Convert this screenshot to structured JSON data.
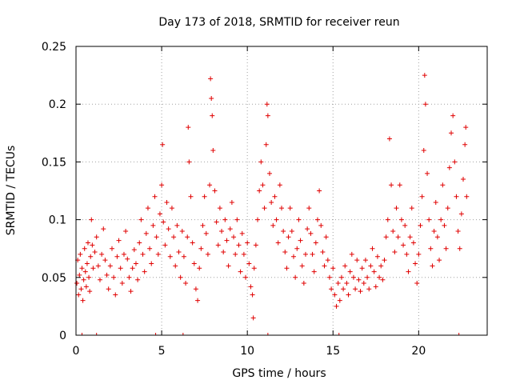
{
  "chart_data": {
    "type": "scatter",
    "title": "Day 173 of 2018, SRMTID for receiver reun",
    "xlabel": "GPS time / hours",
    "ylabel": "SRMTID / TECUs",
    "xlim": [
      0,
      24
    ],
    "ylim": [
      0,
      0.25
    ],
    "xticks": [
      0,
      5,
      10,
      15,
      20
    ],
    "xtick_labels": [
      "0",
      "5",
      "10",
      "15",
      "20"
    ],
    "yticks": [
      0,
      0.05,
      0.1,
      0.15,
      0.2,
      0.25
    ],
    "ytick_labels": [
      "0",
      "0.05",
      "0.1",
      "0.15",
      "0.2",
      "0.25"
    ],
    "grid": true,
    "marker": "+",
    "color": "#e00000",
    "series": [
      {
        "name": "SRMTID",
        "points": [
          [
            0.05,
            0.045
          ],
          [
            0.1,
            0.065
          ],
          [
            0.15,
            0.035
          ],
          [
            0.2,
            0.052
          ],
          [
            0.25,
            0.07
          ],
          [
            0.3,
            0.04
          ],
          [
            0.35,
            0.058
          ],
          [
            0.4,
            0.03
          ],
          [
            0.45,
            0.048
          ],
          [
            0.5,
            0.075
          ],
          [
            0.55,
            0.055
          ],
          [
            0.6,
            0.042
          ],
          [
            0.65,
            0.062
          ],
          [
            0.7,
            0.08
          ],
          [
            0.75,
            0.05
          ],
          [
            0.8,
            0.038
          ],
          [
            0.85,
            0.068
          ],
          [
            0.9,
            0.1
          ],
          [
            0.95,
            0.078
          ],
          [
            1.0,
            0.058
          ],
          [
            1.1,
            0.072
          ],
          [
            1.2,
            0.085
          ],
          [
            1.3,
            0.06
          ],
          [
            1.4,
            0.048
          ],
          [
            1.5,
            0.07
          ],
          [
            1.6,
            0.092
          ],
          [
            1.7,
            0.065
          ],
          [
            1.8,
            0.052
          ],
          [
            1.9,
            0.04
          ],
          [
            2.0,
            0.06
          ],
          [
            2.1,
            0.075
          ],
          [
            2.2,
            0.05
          ],
          [
            2.3,
            0.035
          ],
          [
            2.4,
            0.068
          ],
          [
            2.5,
            0.082
          ],
          [
            2.6,
            0.058
          ],
          [
            2.7,
            0.045
          ],
          [
            2.8,
            0.07
          ],
          [
            2.9,
            0.09
          ],
          [
            3.0,
            0.066
          ],
          [
            3.1,
            0.05
          ],
          [
            3.2,
            0.038
          ],
          [
            3.3,
            0.058
          ],
          [
            3.4,
            0.074
          ],
          [
            3.5,
            0.062
          ],
          [
            3.6,
            0.048
          ],
          [
            3.7,
            0.08
          ],
          [
            3.8,
            0.1
          ],
          [
            3.9,
            0.07
          ],
          [
            4.0,
            0.055
          ],
          [
            4.1,
            0.088
          ],
          [
            4.2,
            0.11
          ],
          [
            4.3,
            0.075
          ],
          [
            4.4,
            0.062
          ],
          [
            4.5,
            0.095
          ],
          [
            4.6,
            0.12
          ],
          [
            4.7,
            0.085
          ],
          [
            4.8,
            0.07
          ],
          [
            4.9,
            0.105
          ],
          [
            5.0,
            0.13
          ],
          [
            5.05,
            0.165
          ],
          [
            5.1,
            0.098
          ],
          [
            5.2,
            0.078
          ],
          [
            5.3,
            0.115
          ],
          [
            5.4,
            0.092
          ],
          [
            5.5,
            0.068
          ],
          [
            5.6,
            0.11
          ],
          [
            5.7,
            0.085
          ],
          [
            5.8,
            0.06
          ],
          [
            5.9,
            0.095
          ],
          [
            6.0,
            0.072
          ],
          [
            6.1,
            0.05
          ],
          [
            6.2,
            0.09
          ],
          [
            6.3,
            0.068
          ],
          [
            6.4,
            0.045
          ],
          [
            6.5,
            0.085
          ],
          [
            6.55,
            0.18
          ],
          [
            6.6,
            0.15
          ],
          [
            6.7,
            0.12
          ],
          [
            6.8,
            0.08
          ],
          [
            6.9,
            0.062
          ],
          [
            7.0,
            0.04
          ],
          [
            7.1,
            0.03
          ],
          [
            7.2,
            0.058
          ],
          [
            7.3,
            0.075
          ],
          [
            7.4,
            0.095
          ],
          [
            7.5,
            0.12
          ],
          [
            7.6,
            0.088
          ],
          [
            7.7,
            0.07
          ],
          [
            7.8,
            0.13
          ],
          [
            7.85,
            0.222
          ],
          [
            7.9,
            0.205
          ],
          [
            7.95,
            0.19
          ],
          [
            8.0,
            0.16
          ],
          [
            8.1,
            0.125
          ],
          [
            8.2,
            0.098
          ],
          [
            8.3,
            0.078
          ],
          [
            8.4,
            0.11
          ],
          [
            8.5,
            0.09
          ],
          [
            8.6,
            0.072
          ],
          [
            8.7,
            0.1
          ],
          [
            8.8,
            0.082
          ],
          [
            8.9,
            0.06
          ],
          [
            9.0,
            0.092
          ],
          [
            9.1,
            0.115
          ],
          [
            9.2,
            0.085
          ],
          [
            9.3,
            0.07
          ],
          [
            9.4,
            0.1
          ],
          [
            9.5,
            0.078
          ],
          [
            9.6,
            0.055
          ],
          [
            9.7,
            0.088
          ],
          [
            9.8,
            0.07
          ],
          [
            9.9,
            0.05
          ],
          [
            10.0,
            0.08
          ],
          [
            10.1,
            0.062
          ],
          [
            10.2,
            0.042
          ],
          [
            10.3,
            0.035
          ],
          [
            10.35,
            0.015
          ],
          [
            10.4,
            0.058
          ],
          [
            10.5,
            0.078
          ],
          [
            10.6,
            0.1
          ],
          [
            10.7,
            0.125
          ],
          [
            10.8,
            0.15
          ],
          [
            10.9,
            0.13
          ],
          [
            11.0,
            0.11
          ],
          [
            11.1,
            0.165
          ],
          [
            11.15,
            0.2
          ],
          [
            11.2,
            0.19
          ],
          [
            11.3,
            0.14
          ],
          [
            11.4,
            0.115
          ],
          [
            11.5,
            0.095
          ],
          [
            11.6,
            0.12
          ],
          [
            11.7,
            0.1
          ],
          [
            11.8,
            0.08
          ],
          [
            11.9,
            0.13
          ],
          [
            12.0,
            0.11
          ],
          [
            12.1,
            0.09
          ],
          [
            12.2,
            0.072
          ],
          [
            12.3,
            0.058
          ],
          [
            12.4,
            0.085
          ],
          [
            12.5,
            0.11
          ],
          [
            12.6,
            0.09
          ],
          [
            12.7,
            0.068
          ],
          [
            12.8,
            0.05
          ],
          [
            12.9,
            0.075
          ],
          [
            13.0,
            0.1
          ],
          [
            13.1,
            0.082
          ],
          [
            13.2,
            0.06
          ],
          [
            13.3,
            0.045
          ],
          [
            13.4,
            0.07
          ],
          [
            13.5,
            0.092
          ],
          [
            13.6,
            0.11
          ],
          [
            13.7,
            0.088
          ],
          [
            13.8,
            0.07
          ],
          [
            13.9,
            0.055
          ],
          [
            14.0,
            0.08
          ],
          [
            14.1,
            0.1
          ],
          [
            14.2,
            0.125
          ],
          [
            14.3,
            0.095
          ],
          [
            14.4,
            0.072
          ],
          [
            14.5,
            0.06
          ],
          [
            14.6,
            0.085
          ],
          [
            14.7,
            0.065
          ],
          [
            14.8,
            0.05
          ],
          [
            14.9,
            0.04
          ],
          [
            15.0,
            0.058
          ],
          [
            15.1,
            0.035
          ],
          [
            15.2,
            0.025
          ],
          [
            15.3,
            0.045
          ],
          [
            15.4,
            0.03
          ],
          [
            15.5,
            0.05
          ],
          [
            15.6,
            0.04
          ],
          [
            15.7,
            0.06
          ],
          [
            15.8,
            0.045
          ],
          [
            15.9,
            0.035
          ],
          [
            16.0,
            0.055
          ],
          [
            16.1,
            0.07
          ],
          [
            16.2,
            0.05
          ],
          [
            16.3,
            0.04
          ],
          [
            16.4,
            0.065
          ],
          [
            16.5,
            0.048
          ],
          [
            16.6,
            0.038
          ],
          [
            16.7,
            0.058
          ],
          [
            16.8,
            0.045
          ],
          [
            16.9,
            0.065
          ],
          [
            17.0,
            0.05
          ],
          [
            17.1,
            0.04
          ],
          [
            17.2,
            0.06
          ],
          [
            17.3,
            0.075
          ],
          [
            17.4,
            0.055
          ],
          [
            17.5,
            0.042
          ],
          [
            17.6,
            0.068
          ],
          [
            17.7,
            0.05
          ],
          [
            17.8,
            0.06
          ],
          [
            17.9,
            0.048
          ],
          [
            18.0,
            0.065
          ],
          [
            18.1,
            0.085
          ],
          [
            18.2,
            0.1
          ],
          [
            18.3,
            0.17
          ],
          [
            18.4,
            0.13
          ],
          [
            18.5,
            0.09
          ],
          [
            18.6,
            0.072
          ],
          [
            18.7,
            0.11
          ],
          [
            18.8,
            0.085
          ],
          [
            18.9,
            0.13
          ],
          [
            19.0,
            0.1
          ],
          [
            19.1,
            0.078
          ],
          [
            19.2,
            0.095
          ],
          [
            19.3,
            0.07
          ],
          [
            19.4,
            0.055
          ],
          [
            19.5,
            0.085
          ],
          [
            19.6,
            0.11
          ],
          [
            19.7,
            0.08
          ],
          [
            19.8,
            0.062
          ],
          [
            19.9,
            0.045
          ],
          [
            20.0,
            0.07
          ],
          [
            20.1,
            0.095
          ],
          [
            20.2,
            0.12
          ],
          [
            20.3,
            0.16
          ],
          [
            20.35,
            0.225
          ],
          [
            20.4,
            0.2
          ],
          [
            20.5,
            0.14
          ],
          [
            20.6,
            0.1
          ],
          [
            20.7,
            0.075
          ],
          [
            20.8,
            0.06
          ],
          [
            20.9,
            0.09
          ],
          [
            21.0,
            0.115
          ],
          [
            21.1,
            0.085
          ],
          [
            21.2,
            0.065
          ],
          [
            21.3,
            0.1
          ],
          [
            21.4,
            0.13
          ],
          [
            21.5,
            0.095
          ],
          [
            21.6,
            0.075
          ],
          [
            21.7,
            0.11
          ],
          [
            21.8,
            0.145
          ],
          [
            21.9,
            0.175
          ],
          [
            22.0,
            0.19
          ],
          [
            22.1,
            0.15
          ],
          [
            22.2,
            0.12
          ],
          [
            22.3,
            0.09
          ],
          [
            22.4,
            0.075
          ],
          [
            22.5,
            0.105
          ],
          [
            22.6,
            0.135
          ],
          [
            22.7,
            0.165
          ],
          [
            22.75,
            0.18
          ],
          [
            22.8,
            0.12
          ]
        ]
      }
    ],
    "zero_markers_x": [
      0.35,
      1.2,
      4.65,
      6.25,
      11.2,
      15.35,
      22.35
    ]
  }
}
